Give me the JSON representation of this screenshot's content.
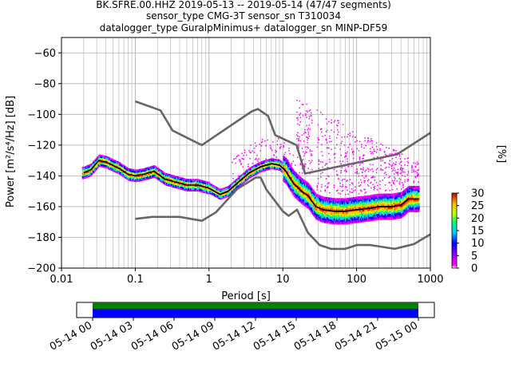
{
  "header": {
    "line1": "BK.SFRE.00.HHZ   2019-05-13 -- 2019-05-14  (47/47 segments)",
    "line2": "sensor_type CMG-3T sensor_sn T310034",
    "line3": "datalogger_type GuralpMinimus+ datalogger_sn MINP-DF59"
  },
  "colors": {
    "noise_model": "#666666",
    "mode_line": "#000000",
    "coverage_green": "#008000",
    "coverage_blue": "#0000ff"
  },
  "chart_data": [
    {
      "type": "heatmap",
      "title": "",
      "xlabel": "Period [s]",
      "ylabel": "Power [m²/s⁴/Hz] [dB]",
      "xscale": "log",
      "xlim": [
        0.01,
        1000
      ],
      "ylim": [
        -200,
        -50
      ],
      "grid": true,
      "x_ticks": [
        0.01,
        0.1,
        1,
        10,
        100,
        1000
      ],
      "x_tick_labels": [
        "0.01",
        "0.1",
        "1",
        "10",
        "100",
        "1000"
      ],
      "y_ticks": [
        -200,
        -180,
        -160,
        -140,
        -120,
        -100,
        -80,
        -60
      ],
      "y_tick_labels": [
        "−200",
        "−180",
        "−160",
        "−140",
        "−120",
        "−100",
        "−80",
        "−60"
      ],
      "colorbar": {
        "label": "[%]",
        "min": 0,
        "max": 30,
        "ticks": [
          0,
          5,
          10,
          15,
          20,
          25,
          30
        ],
        "tick_labels": [
          "0",
          "5",
          "10",
          "15",
          "20",
          "25",
          "30"
        ]
      },
      "lines": [
        {
          "role": "new-high-noise-model",
          "x": [
            0.1,
            0.22,
            0.32,
            0.8,
            3.8,
            4.6,
            6.3,
            7.9,
            15.4,
            20,
            354.8,
            1000
          ],
          "y": [
            -91.5,
            -97.4,
            -110.5,
            -120,
            -98,
            -96.5,
            -101,
            -113.5,
            -120,
            -138.5,
            -126,
            -112
          ]
        },
        {
          "role": "new-low-noise-model",
          "x": [
            0.1,
            0.17,
            0.4,
            0.8,
            1.24,
            2.4,
            4.3,
            5.0,
            6.0,
            10,
            12,
            15.6,
            21.9,
            31.6,
            45,
            70,
            101,
            154,
            328,
            600,
            1000
          ],
          "y": [
            -168,
            -166.7,
            -166.7,
            -169.2,
            -163.7,
            -148.6,
            -141.1,
            -141.1,
            -149,
            -163,
            -166,
            -162,
            -177,
            -185,
            -187.5,
            -187.5,
            -185,
            -185,
            -187.5,
            -184.4,
            -178
          ]
        },
        {
          "role": "mode",
          "x": [
            0.02,
            0.025,
            0.032,
            0.04,
            0.06,
            0.08,
            0.1,
            0.13,
            0.18,
            0.25,
            0.35,
            0.5,
            0.7,
            1.0,
            1.4,
            1.8,
            2.5,
            3.5,
            5,
            7,
            9,
            11,
            14,
            18,
            22,
            28,
            35,
            50,
            70,
            100,
            150,
            200,
            300,
            400,
            500,
            700
          ],
          "y": [
            -138,
            -136,
            -130,
            -131,
            -135,
            -139,
            -140,
            -139,
            -137,
            -142,
            -144,
            -146,
            -146,
            -148,
            -152,
            -150,
            -144,
            -138,
            -134,
            -132,
            -133,
            -137,
            -145,
            -150,
            -153,
            -160,
            -162,
            -163,
            -163,
            -162,
            -161,
            -160,
            -160,
            -159,
            -155,
            -155
          ]
        }
      ],
      "time_axis": {
        "tick_labels": [
          "05-14 00",
          "05-14 03",
          "05-14 06",
          "05-14 09",
          "05-14 12",
          "05-14 15",
          "05-14 18",
          "05-14 21",
          "05-15 00"
        ]
      }
    }
  ]
}
